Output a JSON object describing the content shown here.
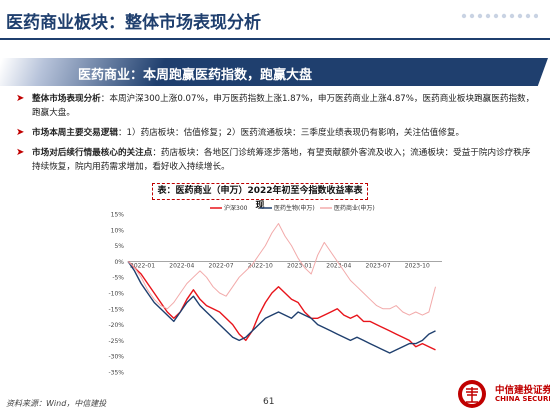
{
  "header": {
    "title": "医药商业板块：整体市场表现分析"
  },
  "banner": {
    "text": "医药商业：本周跑赢医药指数，跑赢大盘"
  },
  "bullets": [
    {
      "label": "整体市场表现分析",
      "text": "：本周沪深300上涨0.07%，申万医药指数上涨1.87%，申万医药商业上涨4.87%，医药商业板块跑赢医药指数，跑赢大盘。"
    },
    {
      "label": "市场本周主要交易逻辑",
      "text": "：1）药店板块：估值修复；2）医药流通板块：三季度业绩表现仍有影响，关注估值修复。"
    },
    {
      "label": "市场对后续行情最核心的关注点",
      "text": "：药店板块：各地区门诊统筹逐步落地，有望贡献额外客流及收入；流通板块：受益于院内诊疗秩序持续恢复，院内用药需求增加，看好收入持续增长。"
    }
  ],
  "chart_title": "表：医药商业（申万）2022年初至今指数收益率表现",
  "chart_data": {
    "type": "line",
    "x_ticks": [
      "2022-01",
      "2022-04",
      "2022-07",
      "2022-10",
      "2023-01",
      "2023-04",
      "2023-07",
      "2023-10"
    ],
    "y_ticks": [
      "15%",
      "10%",
      "5%",
      "0%",
      "-5%",
      "-10%",
      "-15%",
      "-20%",
      "-25%",
      "-30%",
      "-35%"
    ],
    "ylim": [
      -35,
      15
    ],
    "series": [
      {
        "name": "沪深300",
        "color": "#e8141b",
        "x": [
          0,
          0.5,
          1,
          1.5,
          2,
          2.5,
          3,
          3.5,
          4,
          4.5,
          5,
          5.5,
          6,
          6.5,
          7,
          7.5,
          8,
          8.5,
          9,
          9.5,
          10,
          10.5,
          11,
          11.5,
          12,
          12.5,
          13,
          13.5,
          14,
          14.5,
          15,
          15.5,
          16,
          16.5,
          17,
          17.5,
          18,
          18.5,
          19,
          19.5,
          20,
          20.5,
          21,
          21.5,
          22,
          22.5,
          23,
          23.5
        ],
        "values": [
          0,
          -2,
          -4,
          -7,
          -10,
          -13,
          -16,
          -18,
          -16,
          -12,
          -9,
          -12,
          -14,
          -15,
          -16,
          -18,
          -20,
          -23,
          -25,
          -22,
          -17,
          -13,
          -10,
          -8,
          -10,
          -12,
          -13,
          -16,
          -18,
          -18,
          -17,
          -16,
          -15,
          -17,
          -18,
          -17,
          -19,
          -19,
          -20,
          -21,
          -22,
          -23,
          -24,
          -25,
          -27,
          -26,
          -27,
          -28
        ]
      },
      {
        "name": "医药生物(申万)",
        "color": "#1f3f6e",
        "x": [
          0,
          0.5,
          1,
          1.5,
          2,
          2.5,
          3,
          3.5,
          4,
          4.5,
          5,
          5.5,
          6,
          6.5,
          7,
          7.5,
          8,
          8.5,
          9,
          9.5,
          10,
          10.5,
          11,
          11.5,
          12,
          12.5,
          13,
          13.5,
          14,
          14.5,
          15,
          15.5,
          16,
          16.5,
          17,
          17.5,
          18,
          18.5,
          19,
          19.5,
          20,
          20.5,
          21,
          21.5,
          22,
          22.5,
          23,
          23.5
        ],
        "values": [
          0,
          -3,
          -7,
          -10,
          -13,
          -15,
          -17,
          -19,
          -16,
          -13,
          -11,
          -14,
          -16,
          -18,
          -20,
          -22,
          -24,
          -25,
          -24,
          -22,
          -20,
          -18,
          -17,
          -16,
          -17,
          -18,
          -16,
          -17,
          -18,
          -20,
          -21,
          -22,
          -23,
          -24,
          -25,
          -24,
          -25,
          -26,
          -27,
          -28,
          -29,
          -28,
          -27,
          -26,
          -26,
          -25,
          -23,
          -22
        ]
      },
      {
        "name": "医药商业(申万)",
        "color": "#f2aaaa",
        "x": [
          0,
          0.5,
          1,
          1.5,
          2,
          2.5,
          3,
          3.5,
          4,
          4.5,
          5,
          5.5,
          6,
          6.5,
          7,
          7.5,
          8,
          8.5,
          9,
          9.5,
          10,
          10.5,
          11,
          11.5,
          12,
          12.5,
          13,
          13.5,
          14,
          14.5,
          15,
          15.5,
          16,
          16.5,
          17,
          17.5,
          18,
          18.5,
          19,
          19.5,
          20,
          20.5,
          21,
          21.5,
          22,
          22.5,
          23,
          23.5
        ],
        "values": [
          0,
          -2,
          -5,
          -9,
          -12,
          -14,
          -15,
          -13,
          -10,
          -7,
          -5,
          -3,
          -5,
          -8,
          -10,
          -11,
          -8,
          -5,
          -3,
          -1,
          2,
          5,
          9,
          12,
          8,
          5,
          1,
          -2,
          -4,
          2,
          6,
          3,
          0,
          -3,
          -6,
          -8,
          -10,
          -12,
          -14,
          -15,
          -15,
          -14,
          -16,
          -17,
          -16,
          -17,
          -16,
          -8
        ]
      }
    ]
  },
  "footer": {
    "source": "资料来源：Wind，中信建投",
    "page": "61",
    "logo_cn": "中信建投证券",
    "logo_en": "CHINA SECURITIES",
    "brand_color": "#c00000"
  }
}
